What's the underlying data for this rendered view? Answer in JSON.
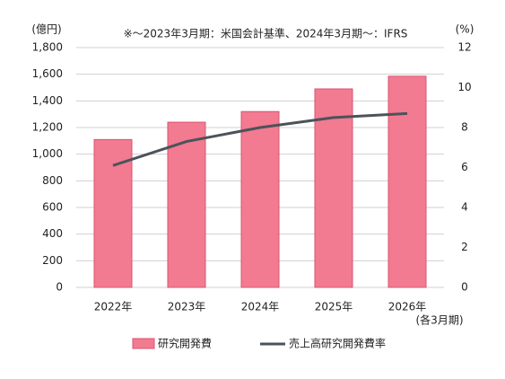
{
  "chart_data": {
    "type": "bar_line",
    "note": "※～2023年3月期：米国会計基準、2024年3月期～：IFRS",
    "y_label": "(億円)",
    "y2_label": "(%)",
    "x_note": "(各3月期)",
    "categories": [
      "2022年",
      "2023年",
      "2024年",
      "2025年",
      "2026年"
    ],
    "series": [
      {
        "name": "研究開発費",
        "type": "bar",
        "color": "#f27a91",
        "values": [
          1110,
          1240,
          1320,
          1490,
          1585
        ]
      },
      {
        "name": "売上高研究開発費率",
        "type": "line",
        "axis": "y2",
        "color": "#4b535a",
        "values": [
          6.1,
          7.3,
          8.0,
          8.5,
          8.7
        ]
      }
    ],
    "ylim": [
      0,
      1800
    ],
    "yticks": [
      0,
      200,
      400,
      600,
      800,
      {
        "value": 1000,
        "label": "1,000"
      },
      {
        "value": 1200,
        "label": "1,200"
      },
      {
        "value": 1400,
        "label": "1,400"
      },
      {
        "value": 1600,
        "label": "1,600"
      },
      {
        "value": 1800,
        "label": "1,800"
      }
    ],
    "y2lim": [
      0,
      12
    ],
    "y2ticks": [
      0,
      2,
      4,
      6,
      8,
      10,
      12
    ],
    "grid": true
  }
}
